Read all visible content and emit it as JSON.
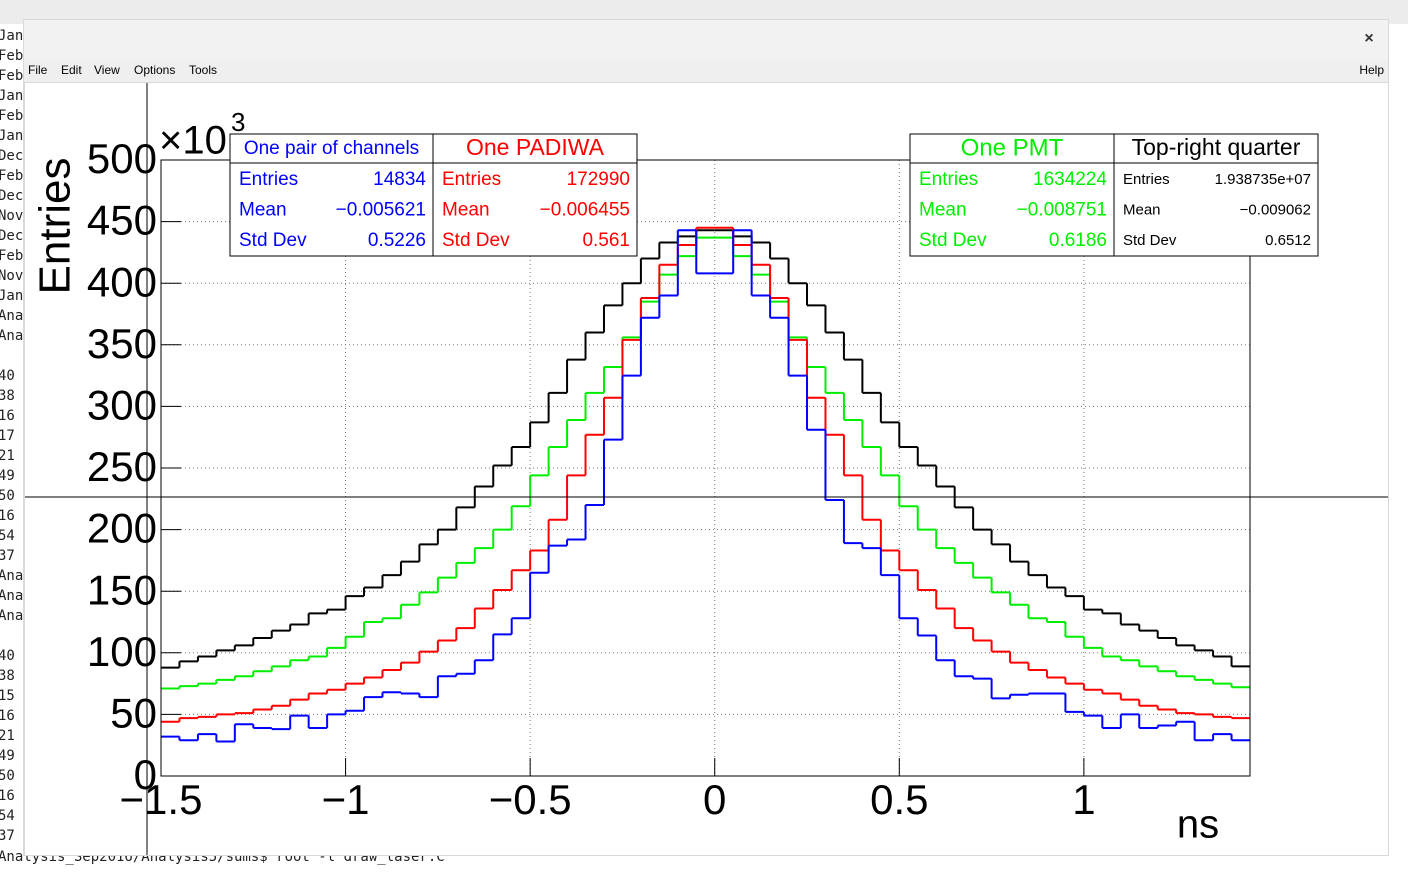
{
  "terminal": {
    "lines": [
      "Jan",
      "Feb",
      "Feb",
      "Jan",
      "Feb",
      "Jan",
      "Dec",
      "Feb",
      "Dec",
      "Nov",
      "Dec",
      "Feb",
      "Nov",
      "Jan",
      "Ana",
      "Ana",
      null,
      "40",
      "38",
      "16",
      "17",
      "21",
      "49",
      "50",
      "16",
      "54",
      "37",
      "Ana",
      "Ana",
      "Ana",
      null,
      "40",
      "38",
      "15",
      "16",
      "21",
      "49",
      "50",
      "16",
      "54",
      "37"
    ],
    "prompt": "Analysis_Sep2016/Analysis5/sums$ root -l draw_laser.C"
  },
  "window": {
    "close": "×",
    "menu": [
      "File",
      "Edit",
      "View",
      "Options",
      "Tools"
    ],
    "help": "Help"
  },
  "chart_data": {
    "type": "histogram",
    "x_label": "ns",
    "y_label": "Entries",
    "y_multiplier": "×10",
    "y_multiplier_exponent": "3",
    "xlim": [
      -1.5,
      1.45
    ],
    "ylim": [
      0,
      500
    ],
    "xticks": [
      {
        "value": -1.5,
        "label": "−1.5"
      },
      {
        "value": -1,
        "label": "−1"
      },
      {
        "value": -0.5,
        "label": "−0.5"
      },
      0,
      0.5,
      1
    ],
    "yticks": [
      0,
      50,
      100,
      150,
      200,
      250,
      300,
      350,
      400,
      450,
      500
    ],
    "grid": true,
    "bins": [
      -1.5,
      -1.45,
      -1.4,
      -1.35,
      -1.3,
      -1.25,
      -1.2,
      -1.15,
      -1.1,
      -1.05,
      -1,
      -0.95,
      -0.9,
      -0.85,
      -0.8,
      -0.75,
      -0.7,
      -0.65,
      -0.6,
      -0.55,
      -0.5,
      -0.45,
      -0.4,
      -0.35,
      -0.3,
      -0.25,
      -0.2,
      -0.15,
      -0.1,
      -0.05,
      0,
      0.05,
      0.1,
      0.15,
      0.2,
      0.25,
      0.3,
      0.35,
      0.4,
      0.45,
      0.5,
      0.55,
      0.6,
      0.65,
      0.7,
      0.75,
      0.8,
      0.85,
      0.9,
      0.95,
      1,
      1.05,
      1.1,
      1.15,
      1.2,
      1.25,
      1.3,
      1.35,
      1.4,
      1.45
    ],
    "series": [
      {
        "name": "One pair of channels",
        "color": "#0000ff",
        "values": [
          32,
          29,
          34,
          28,
          42,
          39,
          38,
          49,
          39,
          50,
          53,
          64,
          68,
          67,
          64,
          81,
          83,
          94,
          115,
          128,
          165,
          187,
          192,
          220,
          273,
          325,
          372,
          390,
          443,
          408,
          408,
          443,
          390,
          372,
          325,
          281,
          224,
          189,
          185,
          163,
          128,
          114,
          94,
          81,
          79,
          63,
          66,
          67,
          67,
          52,
          49,
          39,
          50,
          39,
          41,
          44,
          29,
          34,
          29
        ]
      },
      {
        "name": "One PADIWA",
        "color": "#ff0000",
        "values": [
          44,
          47,
          48,
          50,
          51,
          54,
          57,
          62,
          67,
          70,
          75,
          80,
          86,
          92,
          101,
          110,
          120,
          136,
          151,
          167,
          183,
          208,
          244,
          277,
          307,
          354,
          388,
          415,
          431,
          445,
          445,
          431,
          415,
          388,
          354,
          307,
          277,
          244,
          208,
          183,
          167,
          151,
          136,
          120,
          110,
          101,
          92,
          86,
          80,
          75,
          70,
          67,
          62,
          57,
          54,
          51,
          50,
          48,
          47
        ]
      },
      {
        "name": "One PMT",
        "color": "#00ee00",
        "values": [
          71,
          73,
          75,
          78,
          81,
          85,
          89,
          94,
          97,
          104,
          113,
          125,
          128,
          139,
          149,
          161,
          173,
          185,
          200,
          219,
          244,
          267,
          289,
          311,
          332,
          356,
          385,
          407,
          422,
          437,
          437,
          422,
          407,
          385,
          356,
          332,
          311,
          289,
          267,
          244,
          219,
          200,
          185,
          173,
          161,
          149,
          139,
          128,
          125,
          113,
          104,
          97,
          94,
          89,
          85,
          81,
          78,
          75,
          72
        ]
      },
      {
        "name": "Top-right quarter",
        "color": "#000000",
        "values": [
          88,
          93,
          97,
          102,
          106,
          112,
          118,
          123,
          132,
          135,
          146,
          153,
          163,
          174,
          188,
          200,
          218,
          235,
          252,
          267,
          287,
          311,
          338,
          360,
          382,
          400,
          420,
          433,
          438,
          443,
          443,
          438,
          433,
          420,
          400,
          382,
          360,
          338,
          311,
          287,
          267,
          252,
          235,
          218,
          200,
          188,
          174,
          163,
          153,
          146,
          135,
          132,
          123,
          118,
          112,
          106,
          102,
          97,
          89
        ]
      }
    ],
    "stats": [
      {
        "rows": [
          [
            "Entries",
            "14834"
          ],
          [
            "Mean",
            "−0.005621"
          ],
          [
            "Std Dev",
            "0.5226"
          ]
        ]
      },
      {
        "rows": [
          [
            "Entries",
            "172990"
          ],
          [
            "Mean",
            "−0.006455"
          ],
          [
            "Std Dev",
            "0.561"
          ]
        ]
      },
      {
        "rows": [
          [
            "Entries",
            "1634224"
          ],
          [
            "Mean",
            "−0.008751"
          ],
          [
            "Std Dev",
            "0.6186"
          ]
        ]
      },
      {
        "rows": [
          [
            "Entries",
            "1.938735e+07"
          ],
          [
            "Mean",
            "−0.009062"
          ],
          [
            "Std Dev",
            "0.6512"
          ]
        ]
      }
    ]
  }
}
